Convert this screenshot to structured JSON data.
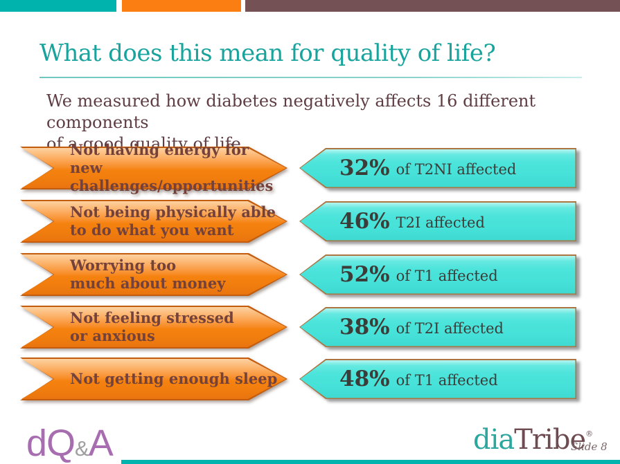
{
  "top_bar": {
    "segments": [
      {
        "name": "teal",
        "color": "#00b3ac"
      },
      {
        "name": "orange",
        "color": "#fb7e12"
      },
      {
        "name": "brown",
        "color": "#745154"
      }
    ]
  },
  "header": {
    "title": "What does this mean for quality of life?"
  },
  "intro": {
    "line1": "We measured how diabetes negatively affects 16 different components",
    "line2": "of a good quality of life."
  },
  "stats": {
    "rows": [
      {
        "label1": "Not having energy for new",
        "label2": "challenges/opportunities",
        "percent": "32%",
        "detail": "of T2NI affected"
      },
      {
        "label1": "Not being physically able",
        "label2": "to do what you want",
        "percent": "46%",
        "detail": "T2I affected"
      },
      {
        "label1": "Worrying too",
        "label2": "much about money",
        "percent": "52%",
        "detail": "of T1 affected"
      },
      {
        "label1": "Not feeling stressed",
        "label2": "or anxious",
        "percent": "38%",
        "detail": "of T2I affected"
      },
      {
        "label1": "Not getting enough sleep",
        "label2": "",
        "percent": "48%",
        "detail": "of T1 affected"
      }
    ]
  },
  "footer": {
    "dqa_part1": "dQ",
    "dqa_amp": "&",
    "dqa_part2": "A",
    "diatribe_part1": "dia",
    "diatribe_part2": "Tribe",
    "diatribe_reg": "®",
    "slide_label": "Slide 8"
  },
  "colors": {
    "accent_teal": "#00b3ac",
    "accent_orange": "#fb7e12",
    "accent_brown": "#745154",
    "title_teal": "#18a39d",
    "body_maroon": "#5e3d43",
    "arrow_fill": "#f5820f",
    "arrow_text": "#74423a",
    "stat_fill": "#48e2d9",
    "stat_text": "#3c3c38",
    "logo_purple": "#a76db0",
    "logo_gray": "#9e9e9e",
    "diatribe_teal": "#2ca79f",
    "diatribe_maroon": "#6d4b51"
  }
}
